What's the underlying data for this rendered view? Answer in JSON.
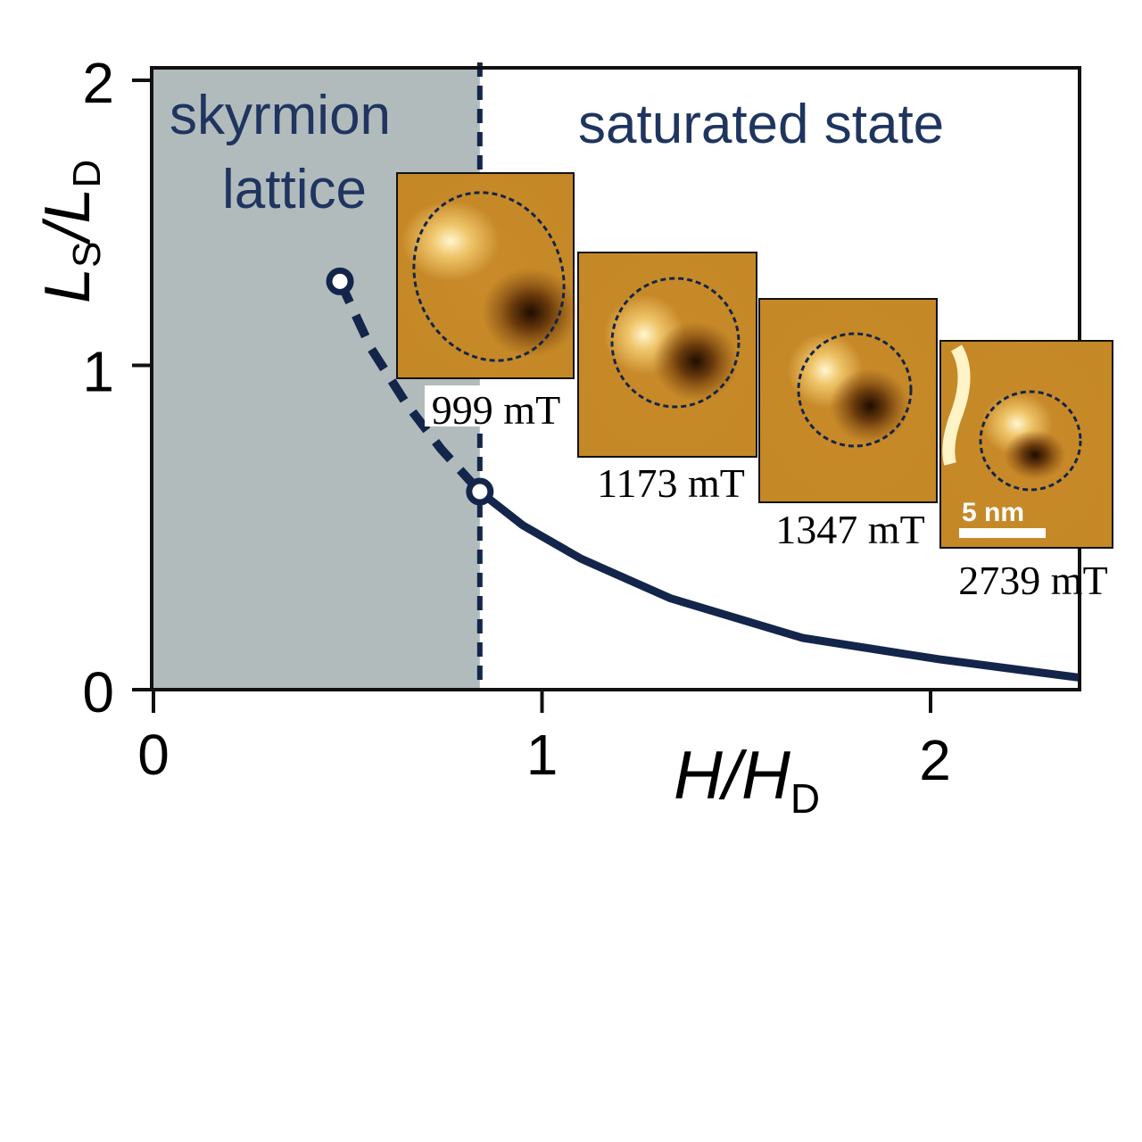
{
  "chart_data": {
    "type": "line",
    "title": "",
    "xlabel": "H/H",
    "xlabel_sub": "D",
    "ylabel_main1": "L",
    "ylabel_sub1": "S",
    "ylabel_main2": "L",
    "ylabel_sub2": "D",
    "xlim": [
      0,
      2.38
    ],
    "ylim": [
      0,
      2.04
    ],
    "xticks": [
      "0",
      "1",
      "2"
    ],
    "yticks": [
      "0",
      "1",
      "2"
    ],
    "grid": false,
    "regions": {
      "skyrmion_lattice": {
        "label_line1": "skyrmion",
        "label_line2": "lattice",
        "x_range": [
          0,
          0.84
        ],
        "color": "#b1bbbc"
      },
      "saturated_state": {
        "label": "saturated state"
      }
    },
    "boundary_x": 0.84,
    "series": [
      {
        "name": "dashed",
        "style": "dashed",
        "x": [
          0.48,
          0.56,
          0.65,
          0.74,
          0.84
        ],
        "y": [
          1.34,
          1.12,
          0.94,
          0.79,
          0.65
        ]
      },
      {
        "name": "solid",
        "style": "solid",
        "x": [
          0.84,
          0.95,
          1.1,
          1.33,
          1.67,
          2.02,
          2.38
        ],
        "y": [
          0.65,
          0.54,
          0.43,
          0.3,
          0.17,
          0.1,
          0.04
        ]
      }
    ],
    "endpoints": [
      {
        "x": 0.48,
        "y": 1.34
      },
      {
        "x": 0.84,
        "y": 0.65
      }
    ],
    "insets": [
      {
        "label": "999 mT"
      },
      {
        "label": "1173 mT"
      },
      {
        "label": "1347 mT"
      },
      {
        "label": "2739 mT",
        "scale_bar": "5 nm"
      }
    ],
    "colors": {
      "line": "#13254a",
      "text": "#1f3560"
    }
  }
}
